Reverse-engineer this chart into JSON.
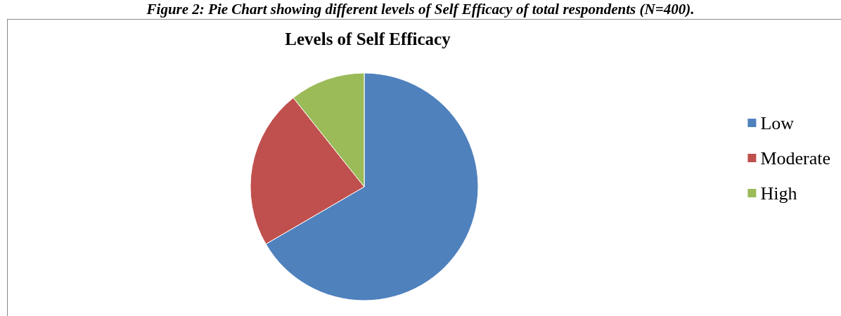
{
  "chart_data": {
    "type": "pie",
    "title": "Levels of Self Efficacy",
    "annotations": [
      "Figure 2: Pie Chart showing different levels of Self Efficacy of total respondents (N=400)."
    ],
    "categories": [
      "Low",
      "Moderate",
      "High"
    ],
    "values": [
      66.6,
      22.7,
      10.7
    ],
    "colors": [
      "#4f81bd",
      "#c0504d",
      "#9bbb59"
    ],
    "legend": "right"
  }
}
